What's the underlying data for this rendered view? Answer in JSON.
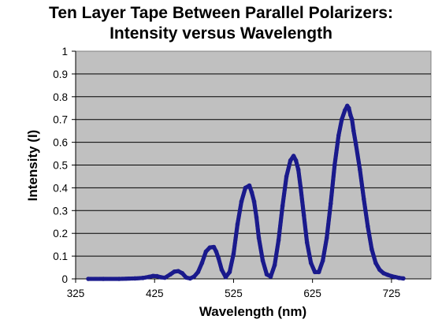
{
  "chart_data": {
    "type": "scatter",
    "title_line1": "Ten Layer Tape Between Parallel Polarizers:",
    "title_line2": "Intensity versus Wavelength",
    "xlabel": "Wavelength (nm)",
    "ylabel": "Intensity (I)",
    "xlim": [
      325,
      775
    ],
    "ylim": [
      0,
      1
    ],
    "x_ticks": [
      325,
      425,
      525,
      625,
      725
    ],
    "y_ticks": [
      0,
      0.1,
      0.2,
      0.3,
      0.4,
      0.5,
      0.6,
      0.7,
      0.8,
      0.9,
      1
    ],
    "grid": "horizontal",
    "plot_background": "#c0c0c0",
    "series_color": "#1a1a8c",
    "series": [
      {
        "x": [
          341,
          360,
          380,
          400,
          410,
          418,
          423,
          428,
          433,
          438,
          445,
          450,
          455,
          460,
          465,
          470,
          475,
          480,
          485,
          490,
          495,
          500,
          503,
          506,
          510,
          515,
          520,
          525,
          530,
          535,
          540,
          545,
          548,
          551,
          554,
          557,
          562,
          567,
          572,
          577,
          582,
          587,
          592,
          597,
          601,
          604,
          607,
          610,
          614,
          618,
          623,
          628,
          633,
          638,
          643,
          648,
          653,
          658,
          662,
          666,
          669,
          671,
          673,
          675,
          677,
          680,
          685,
          690,
          695,
          700,
          705,
          710,
          715,
          720,
          725,
          730,
          735,
          740
        ],
        "y": [
          0.0,
          0.0,
          0.0,
          0.002,
          0.004,
          0.009,
          0.013,
          0.012,
          0.007,
          0.005,
          0.02,
          0.032,
          0.034,
          0.025,
          0.006,
          0.002,
          0.01,
          0.03,
          0.07,
          0.12,
          0.138,
          0.14,
          0.12,
          0.09,
          0.04,
          0.008,
          0.03,
          0.11,
          0.24,
          0.34,
          0.4,
          0.41,
          0.38,
          0.34,
          0.27,
          0.18,
          0.08,
          0.02,
          0.01,
          0.06,
          0.17,
          0.32,
          0.45,
          0.52,
          0.54,
          0.52,
          0.48,
          0.4,
          0.28,
          0.16,
          0.07,
          0.03,
          0.03,
          0.08,
          0.18,
          0.33,
          0.5,
          0.63,
          0.7,
          0.74,
          0.76,
          0.75,
          0.72,
          0.7,
          0.65,
          0.59,
          0.48,
          0.35,
          0.23,
          0.13,
          0.07,
          0.04,
          0.025,
          0.018,
          0.012,
          0.008,
          0.004,
          0.002
        ]
      }
    ]
  }
}
